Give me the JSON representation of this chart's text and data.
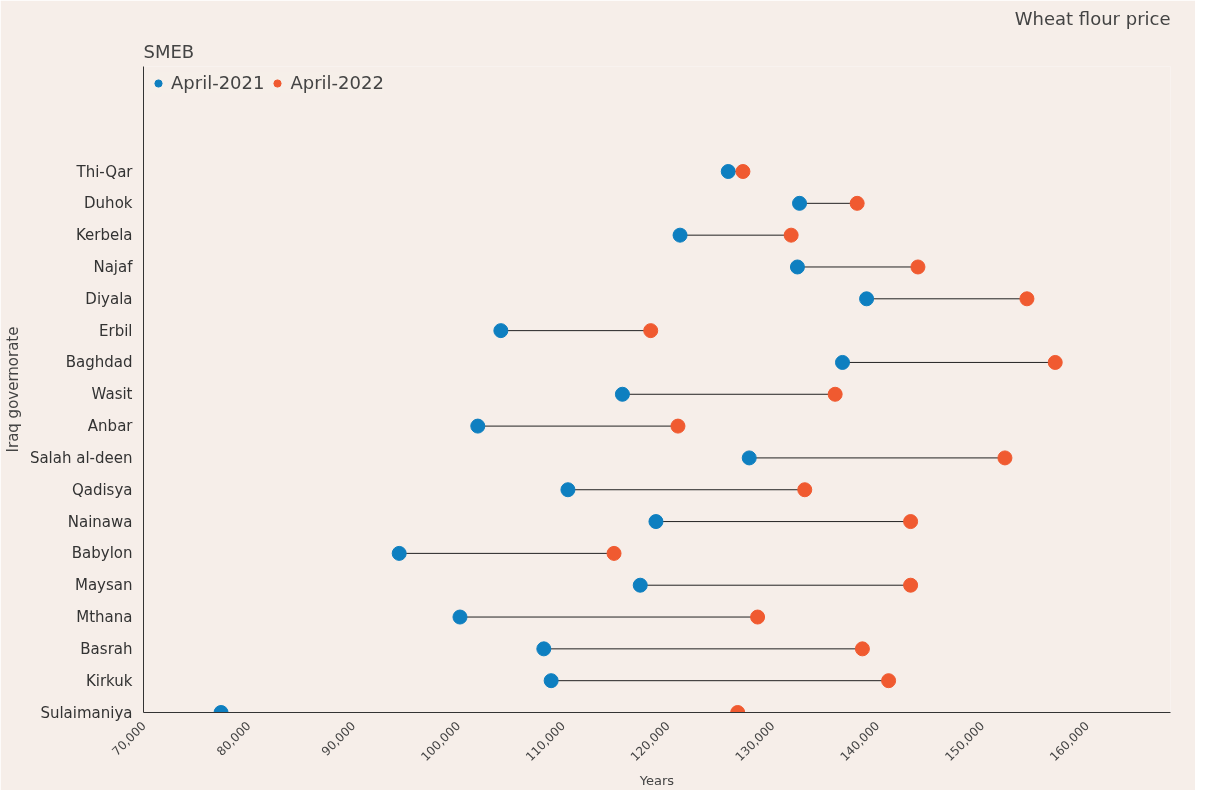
{
  "chart_data": {
    "type": "scatter",
    "title": "Wheat flour price",
    "subtitle": "SMEB",
    "xlabel": "Years",
    "ylabel": "Iraq governorate",
    "orientation": "horizontal",
    "categories": [
      "Thi-Qar",
      "Duhok",
      "Kerbela",
      "Najaf",
      "Diyala",
      "Erbil",
      "Baghdad",
      "Wasit",
      "Anbar",
      "Salah al-deen",
      "Qadisya",
      "Nainawa",
      "Babylon",
      "Maysan",
      "Mthana",
      "Basrah",
      "Kirkuk",
      "Sulaimaniya"
    ],
    "series": [
      {
        "name": "April-2021",
        "color": "#0e7fc0",
        "values": [
          125800,
          132600,
          121200,
          132400,
          139000,
          104100,
          136700,
          115700,
          101900,
          127800,
          110500,
          118900,
          94400,
          117400,
          100200,
          108200,
          108900,
          77400
        ]
      },
      {
        "name": "April-2022",
        "color": "#f05a30",
        "values": [
          127200,
          138100,
          131800,
          143900,
          154300,
          118400,
          157000,
          136000,
          121000,
          152200,
          133100,
          143200,
          114900,
          143200,
          128600,
          138600,
          141100,
          126700
        ]
      }
    ],
    "xlim": [
      70000,
      168000
    ],
    "xticks": [
      {
        "value": 70000,
        "label": "70,000"
      },
      {
        "value": 80000,
        "label": "80,000"
      },
      {
        "value": 90000,
        "label": "90,000"
      },
      {
        "value": 100000,
        "label": "100,000"
      },
      {
        "value": 110000,
        "label": "110,000"
      },
      {
        "value": 120000,
        "label": "120,000"
      },
      {
        "value": 130000,
        "label": "130,000"
      },
      {
        "value": 140000,
        "label": "140,000"
      },
      {
        "value": 150000,
        "label": "150,000"
      },
      {
        "value": 160000,
        "label": "160,000"
      }
    ],
    "grid": false,
    "legend": "top left",
    "marker": "circle"
  }
}
